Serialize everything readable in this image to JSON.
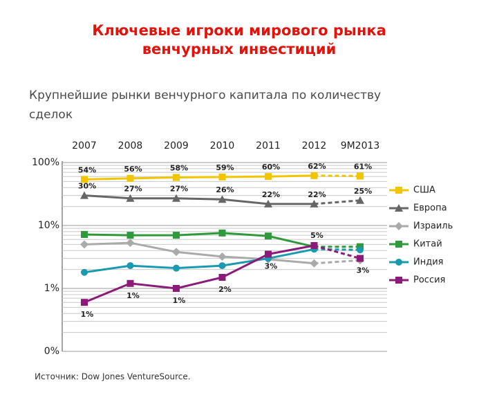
{
  "chart_data": {
    "type": "line",
    "title": [
      "Ключевые игроки мирового рынка",
      "венчурных инвестиций"
    ],
    "subtitle": [
      "Крупнейшие рынки венчурного капитала по количеству",
      "сделок"
    ],
    "source": "Источник: Dow Jones VentureSource.",
    "categories": [
      "2007",
      "2008",
      "2009",
      "2010",
      "2011",
      "2012",
      "9M2013"
    ],
    "log_scale": true,
    "ylim": [
      0.1,
      100
    ],
    "yticks": [
      {
        "value": 100,
        "label": "100%"
      },
      {
        "value": 10,
        "label": "10%"
      },
      {
        "value": 1,
        "label": "1%"
      },
      {
        "value": 0.1,
        "label": "0%"
      }
    ],
    "yminor_ticks": [
      0.2,
      0.3,
      0.4,
      0.5,
      0.6,
      0.7,
      0.8,
      0.9,
      2,
      3,
      4,
      5,
      6,
      7,
      8,
      9,
      20,
      30,
      40,
      50,
      60,
      70,
      80,
      90
    ],
    "grid": true,
    "dashed_last_segment": true,
    "legend": "right",
    "series": [
      {
        "name": "США",
        "color": "#f2c500",
        "marker": "square",
        "values": [
          54,
          56,
          58,
          59,
          60,
          62,
          61
        ],
        "value_labels": [
          "54%",
          "56%",
          "58%",
          "59%",
          "60%",
          "62%",
          "61%"
        ]
      },
      {
        "name": "Европа",
        "color": "#666666",
        "marker": "triangle",
        "values": [
          30,
          27,
          27,
          26,
          22,
          22,
          25
        ],
        "value_labels": [
          "30%",
          "27%",
          "27%",
          "26%",
          "22%",
          "22%",
          "25%"
        ]
      },
      {
        "name": "Израиль",
        "color": "#aaaaaa",
        "marker": "diamond",
        "values": [
          5.0,
          5.3,
          3.8,
          3.2,
          2.9,
          2.5,
          2.8
        ]
      },
      {
        "name": "Китай",
        "color": "#2e9a3c",
        "marker": "square",
        "values": [
          7.2,
          7.0,
          7.0,
          7.6,
          6.8,
          4.6,
          4.6
        ]
      },
      {
        "name": "Индия",
        "color": "#1a9ab0",
        "marker": "circle",
        "values": [
          1.8,
          2.3,
          2.1,
          2.3,
          3.0,
          4.2,
          4.1
        ]
      },
      {
        "name": "Россия",
        "color": "#8b1a7a",
        "marker": "square",
        "values": [
          0.6,
          1.2,
          1.0,
          1.5,
          3.5,
          4.8,
          3.0
        ],
        "value_labels": [
          "1%",
          "1%",
          "1%",
          "2%",
          "3%",
          "5%",
          "3%"
        ]
      }
    ]
  }
}
